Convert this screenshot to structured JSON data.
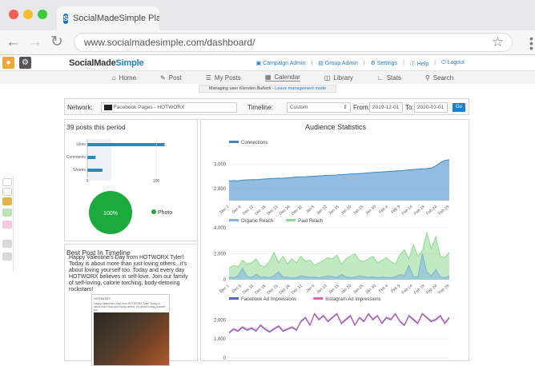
{
  "browser": {
    "tab_title": "SocialMadeSimple Plat",
    "url": "www.socialmadesimple.com/dashboard/",
    "colors": {
      "close": "#f25f57",
      "minimize": "#f6be2f",
      "maximize": "#3ec83e"
    }
  },
  "app": {
    "brand_part1": "SocialMade",
    "brand_part2": "Simple",
    "top_links": [
      "Campaign Admin",
      "Group Admin",
      "Settings",
      "Help",
      "Logout"
    ],
    "nav": [
      {
        "label": "Home",
        "icon": "home-icon"
      },
      {
        "label": "Post",
        "icon": "pencil-icon"
      },
      {
        "label": "My Posts",
        "icon": "list-icon"
      },
      {
        "label": "Calendar",
        "icon": "calendar-icon"
      },
      {
        "label": "Library",
        "icon": "library-icon"
      },
      {
        "label": "Stats",
        "icon": "stats-icon"
      },
      {
        "label": "Search",
        "icon": "search-icon"
      }
    ],
    "notice_prefix": "Managing user",
    "notice_user": "Kiersten Bullock",
    "notice_link": "- Leave management mode"
  },
  "filter": {
    "network_label": "Network:",
    "network_value": "Facebook Pages - HOTWORX",
    "timeline_label": "Timeline:",
    "timeline_value": "Custom",
    "from_label": "From:",
    "from_value": "2019-12-01",
    "to_label": "To:",
    "to_value": "2020-03-01",
    "go_label": "Go"
  },
  "posts_panel": {
    "title": "39 posts this period",
    "bar_chart": {
      "categories": [
        "Likes",
        "Comments",
        "Shares"
      ],
      "values": [
        112,
        12,
        22
      ],
      "xticks": [
        "0",
        "100"
      ],
      "xlim": [
        0,
        130
      ],
      "color": "#1f8bc9"
    },
    "pie": {
      "label": "100%",
      "legend": "Photo",
      "color": "#1daa3c"
    }
  },
  "best_post": {
    "title": "Best Post In Timeline",
    "text": "Happy Valentine's Day from HOTWORX Tyler! Today is about more than just loving others...it's about loving yourself too. Today and every day HOTWORX believes in self-love. Join our family of self-loving, calorie torching, body-detoxing rockstars!",
    "thumb_header": "HOTWORX",
    "thumb_text": "Happy Valentine's Day from HOTWORX Tyler! Today is about more than just loving others, it's about loving yourself too."
  },
  "chart_data": [
    {
      "type": "area",
      "title": "Audience Statistics",
      "series": [
        {
          "name": "Connections",
          "color": "#3b87c7",
          "values": [
            2860,
            2865,
            2862,
            2868,
            2870,
            2872,
            2871,
            2875,
            2878,
            2880,
            2882,
            2884,
            2883,
            2887,
            2890,
            2893,
            2895,
            2896,
            2898,
            2900,
            2903,
            2905,
            2907,
            2908,
            2910,
            2913,
            2915,
            2918,
            2920,
            2922,
            2925,
            2928,
            2930,
            2933,
            2935,
            2938,
            2940,
            2943,
            2945,
            2948,
            2952,
            2955,
            2958,
            2960,
            2962,
            2967,
            2985,
            3010,
            3030,
            3035
          ]
        }
      ],
      "x_ticks": [
        "Dec 1",
        "Dec 6",
        "Dec 11",
        "Dec 16",
        "Dec 21",
        "Dec 26",
        "Dec 31",
        "Jan 5",
        "Jan 10",
        "Jan 15",
        "Jan 20",
        "Jan 25",
        "Jan 30",
        "Feb 4",
        "Feb 9",
        "Feb 14",
        "Feb 19",
        "Feb 24",
        "Feb 29"
      ],
      "y_ticks": [
        "2,800",
        "3,000"
      ],
      "ylim": [
        2700,
        3100
      ]
    },
    {
      "type": "area",
      "series": [
        {
          "name": "Organic Reach",
          "color": "#7fb3de",
          "values": [
            200,
            150,
            300,
            900,
            250,
            180,
            400,
            200,
            220,
            150,
            300,
            600,
            220,
            180,
            120,
            160,
            300,
            250,
            180,
            200,
            160,
            220,
            300,
            250,
            180,
            400,
            220,
            160,
            200,
            300,
            250,
            180,
            220,
            150,
            200,
            180,
            160,
            220,
            400,
            300,
            1100,
            250,
            200,
            2000,
            600,
            300,
            800,
            200,
            150,
            300
          ]
        },
        {
          "name": "Paid Reach",
          "color": "#8fd98f",
          "values": [
            900,
            1100,
            1000,
            1500,
            1200,
            1300,
            1600,
            1100,
            1000,
            1400,
            2100,
            1300,
            1800,
            1200,
            1600,
            1300,
            1800,
            1400,
            1500,
            1100,
            1300,
            1500,
            1700,
            1600,
            1900,
            1200,
            1600,
            1800,
            2000,
            1500,
            1400,
            1600,
            1800,
            1300,
            1500,
            1700,
            1400,
            1200,
            1900,
            2300,
            1600,
            2700,
            1800,
            2200,
            3600,
            2400,
            3300,
            1800,
            1700,
            2100
          ]
        }
      ],
      "x_ticks": [
        "Dec 1",
        "Dec 6",
        "Dec 11",
        "Dec 16",
        "Dec 21",
        "Dec 26",
        "Dec 31",
        "Jan 5",
        "Jan 10",
        "Jan 15",
        "Jan 20",
        "Jan 25",
        "Jan 30",
        "Feb 4",
        "Feb 9",
        "Feb 14",
        "Feb 19",
        "Feb 24",
        "Feb 29"
      ],
      "y_ticks": [
        "0",
        "2,000",
        "4,000"
      ],
      "ylim": [
        0,
        4000
      ]
    },
    {
      "type": "line",
      "series": [
        {
          "name": "Facebook Ad Impressions",
          "color": "#5b62c4",
          "values": [
            1300,
            1500,
            1400,
            1600,
            1450,
            1550,
            1400,
            1700,
            1500,
            1350,
            1500,
            1650,
            1400,
            1500,
            1600,
            1450,
            1900,
            2100,
            1700,
            2300,
            2000,
            2200,
            1900,
            2100,
            2300,
            1800,
            2000,
            2200,
            1700,
            2100,
            1900,
            2300,
            2000,
            2200,
            1800,
            2100,
            2000,
            2300,
            1900,
            1700,
            2200,
            2000,
            1800,
            2300,
            2100,
            1900,
            2000,
            2200,
            1800,
            2100
          ]
        },
        {
          "name": "Instagram Ad Impressions",
          "color": "#e065a8",
          "values": [
            1350,
            1550,
            1450,
            1650,
            1500,
            1600,
            1450,
            1750,
            1550,
            1400,
            1550,
            1700,
            1450,
            1550,
            1650,
            1500,
            1950,
            2150,
            1750,
            2350,
            2050,
            2250,
            1950,
            2150,
            2350,
            1850,
            2050,
            2250,
            1750,
            2150,
            1950,
            2350,
            2050,
            2250,
            1850,
            2150,
            2050,
            2350,
            1950,
            1750,
            2250,
            2050,
            1850,
            2350,
            2150,
            1950,
            2050,
            2250,
            1850,
            2150
          ]
        }
      ],
      "y_ticks": [
        "0",
        "1,000",
        "2,000"
      ],
      "ylim": [
        0,
        2600
      ]
    }
  ]
}
